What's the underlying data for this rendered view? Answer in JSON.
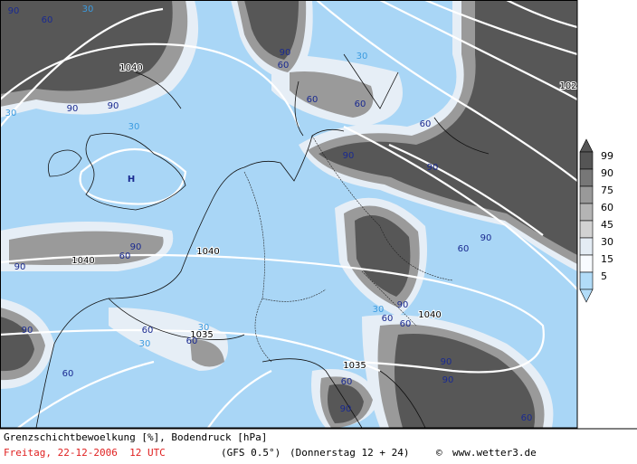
{
  "map": {
    "labels": [
      "1040",
      "1040",
      "1040",
      "1040",
      "1035",
      "1035",
      "102",
      "H",
      "90",
      "90",
      "90",
      "90",
      "90",
      "90",
      "90",
      "90",
      "90",
      "90",
      "90",
      "90",
      "90",
      "90",
      "60",
      "60",
      "60",
      "60",
      "60",
      "60",
      "60",
      "60",
      "60",
      "60",
      "60",
      "60",
      "60",
      "60",
      "30",
      "30",
      "30",
      "30",
      "30",
      "30",
      "30"
    ]
  },
  "legend": {
    "levels": [
      99,
      90,
      75,
      60,
      45,
      30,
      15,
      5
    ],
    "colors": [
      "#555555",
      "#777777",
      "#999999",
      "#b4b4b4",
      "#d2d2d2",
      "#e4ecf4",
      "#f8fbff",
      "#b2dcf8"
    ]
  },
  "footer": {
    "title": "Grenzschichtbewoelkung [%], Bodendruck [hPa]",
    "date": "Freitag, 22-12-2006  12 UTC",
    "model": "(GFS 0.5°)",
    "run": "(Donnerstag 12 + 24)",
    "copyright": "©",
    "site": "www.wetter3.de"
  }
}
